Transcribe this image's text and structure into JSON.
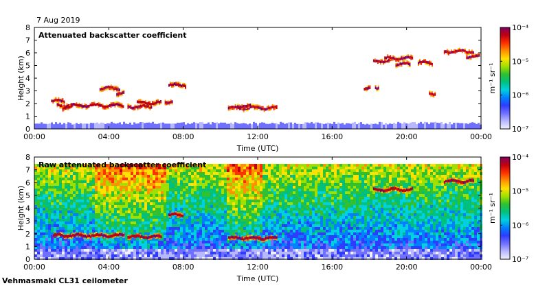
{
  "date_label": "7 Aug 2019",
  "footer_label": "Vehmasmaki CL31 ceilometer",
  "colormap": [
    "#f0f0ff",
    "#b8b8ff",
    "#7070ff",
    "#2e3cff",
    "#0080ff",
    "#00d0e0",
    "#00c080",
    "#30c030",
    "#a0e000",
    "#ffe000",
    "#ff9000",
    "#ff3000",
    "#c00010",
    "#800060"
  ],
  "chart_data": [
    {
      "type": "heatmap",
      "title": "Attenuated backscatter coefficient",
      "xlabel": "Time (UTC)",
      "ylabel": "Height (km)",
      "xlim": [
        0,
        24
      ],
      "ylim": [
        0,
        8
      ],
      "xticks": [
        0,
        4,
        8,
        12,
        16,
        20,
        24
      ],
      "xtick_labels": [
        "00:00",
        "04:00",
        "08:00",
        "12:00",
        "16:00",
        "20:00",
        "00:00"
      ],
      "yticks": [
        0,
        1,
        2,
        3,
        4,
        5,
        6,
        7,
        8
      ],
      "ytick_labels": [
        "0",
        "1",
        "2",
        "3",
        "4",
        "5",
        "6",
        "7",
        "8"
      ],
      "colorbar": {
        "label": "m⁻¹ sr⁻¹",
        "scale": "log",
        "range": [
          1e-07,
          0.0001
        ],
        "tick_labels": [
          "10⁻⁴",
          "10⁻⁵",
          "10⁻⁶",
          "10⁻⁷"
        ]
      },
      "cloud_layers": [
        {
          "t": [
            0.9,
            1.6
          ],
          "h": 2.2
        },
        {
          "t": [
            1.2,
            4.8
          ],
          "h": 1.85
        },
        {
          "t": [
            1.5,
            2.0
          ],
          "h": 1.65
        },
        {
          "t": [
            3.5,
            4.6
          ],
          "h": 3.2
        },
        {
          "t": [
            4.4,
            4.8
          ],
          "h": 2.8
        },
        {
          "t": [
            5.0,
            6.3
          ],
          "h": 1.75
        },
        {
          "t": [
            5.5,
            6.8
          ],
          "h": 2.05
        },
        {
          "t": [
            7.0,
            7.4
          ],
          "h": 2.15
        },
        {
          "t": [
            7.2,
            8.1
          ],
          "h": 3.45
        },
        {
          "t": [
            10.4,
            13.0
          ],
          "h": 1.65
        },
        {
          "t": [
            10.9,
            11.6
          ],
          "h": 1.8
        },
        {
          "t": [
            18.2,
            19.1
          ],
          "h": 5.35
        },
        {
          "t": [
            18.8,
            20.3
          ],
          "h": 5.55
        },
        {
          "t": [
            19.4,
            20.2
          ],
          "h": 5.1
        },
        {
          "t": [
            20.6,
            21.4
          ],
          "h": 5.2
        },
        {
          "t": [
            22.0,
            23.6
          ],
          "h": 6.1
        },
        {
          "t": [
            23.2,
            23.9
          ],
          "h": 5.7
        },
        {
          "t": [
            17.7,
            18.0
          ],
          "h": 3.2
        },
        {
          "t": [
            18.3,
            18.5
          ],
          "h": 3.25
        },
        {
          "t": [
            21.2,
            21.5
          ],
          "h": 2.75
        }
      ],
      "surface_layer_top_km": 0.45
    },
    {
      "type": "heatmap",
      "title": "Raw attenuated backscatter coefficient",
      "xlabel": "Time (UTC)",
      "ylabel": "Height (km)",
      "xlim": [
        0,
        24
      ],
      "ylim": [
        0,
        8
      ],
      "xticks": [
        0,
        4,
        8,
        12,
        16,
        20,
        24
      ],
      "xtick_labels": [
        "00:00",
        "04:00",
        "08:00",
        "12:00",
        "16:00",
        "20:00",
        "00:00"
      ],
      "yticks": [
        0,
        1,
        2,
        3,
        4,
        5,
        6,
        7,
        8
      ],
      "ytick_labels": [
        "0",
        "1",
        "2",
        "3",
        "4",
        "5",
        "6",
        "7",
        "8"
      ],
      "colorbar": {
        "label": "m⁻¹ sr⁻¹",
        "scale": "log",
        "range": [
          1e-07,
          0.0001
        ],
        "tick_labels": [
          "10⁻⁴",
          "10⁻⁵",
          "10⁻⁶",
          "10⁻⁷"
        ]
      },
      "cloud_layers": [
        {
          "t": [
            1.0,
            4.8
          ],
          "h": 1.85
        },
        {
          "t": [
            5.0,
            6.8
          ],
          "h": 1.75
        },
        {
          "t": [
            7.2,
            8.0
          ],
          "h": 3.45
        },
        {
          "t": [
            10.4,
            13.0
          ],
          "h": 1.65
        },
        {
          "t": [
            18.2,
            20.3
          ],
          "h": 5.45
        },
        {
          "t": [
            22.0,
            23.6
          ],
          "h": 6.1
        }
      ],
      "noise_bands_t": [
        [
          3.2,
          7.0
        ],
        [
          10.2,
          12.2
        ]
      ]
    }
  ]
}
